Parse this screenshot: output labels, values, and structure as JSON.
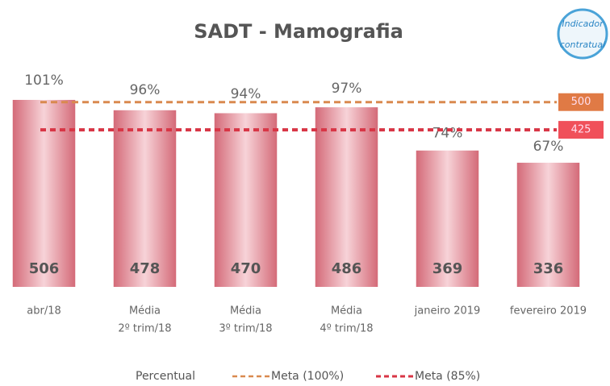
{
  "chart_data": {
    "type": "bar",
    "title": "SADT - Mamografia",
    "badge_text": [
      "Indicador",
      "contratual"
    ],
    "categories": [
      [
        "abr/18"
      ],
      [
        "Média",
        "2º trim/18"
      ],
      [
        "Média",
        "3º trim/18"
      ],
      [
        "Média",
        "4º trim/18"
      ],
      [
        "janeiro 2019"
      ],
      [
        "fevereiro 2019"
      ]
    ],
    "values": [
      506,
      478,
      470,
      486,
      369,
      336
    ],
    "color": "#d9737f",
    "ylim": [
      0,
      700
    ],
    "percent_series": {
      "name": "Percentual",
      "axis": "y2",
      "values": [
        101,
        96,
        94,
        97,
        74,
        67
      ],
      "value_labels": [
        "101%",
        "96%",
        "94%",
        "97%",
        "74%",
        "67%"
      ]
    },
    "y2lim": [
      -5,
      128
    ],
    "reference_lines": [
      {
        "name": "Meta (100%)",
        "value": 500,
        "color": "#d9894f",
        "box_color": "#e07a45"
      },
      {
        "name": "Meta (85%)",
        "value": 425,
        "color": "#d83545",
        "box_color": "#f0505a"
      }
    ],
    "grid": false
  }
}
